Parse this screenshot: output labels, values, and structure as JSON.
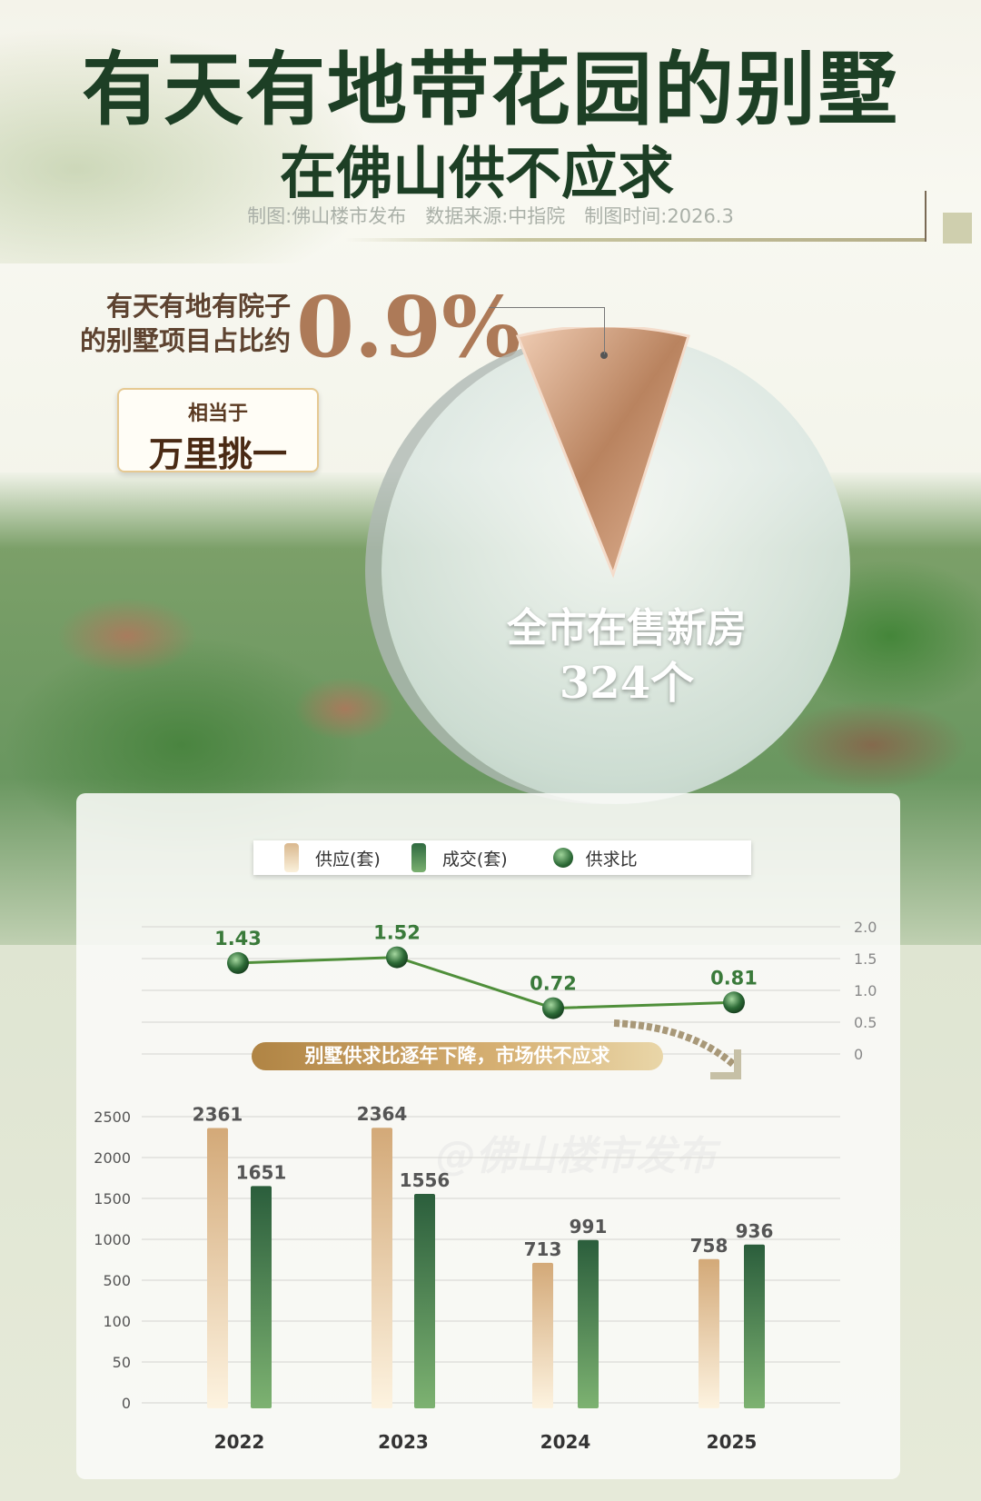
{
  "header": {
    "title_line1": "有天有地带花园的别墅",
    "title_line2": "在佛山供不应求",
    "credits": "制图:佛山楼市发布　数据来源:中指院　制图时间:2026.3"
  },
  "share": {
    "text_line1": "有天有地有院子",
    "text_line2": "的别墅项目占比约",
    "percent": "0.9%",
    "callout_small": "相当于",
    "callout_big": "万里挑一",
    "circle_label": "全市在售新房",
    "circle_value": "324个"
  },
  "colors": {
    "title": "#1d3f25",
    "supply": "#d9b88e",
    "deal": "#2f6a40",
    "ratio": "#3a7a3a",
    "accent": "#ad7a58"
  },
  "banner": "别墅供求比逐年下降，市场供不应求",
  "watermark": "@佛山楼市发布",
  "chart_data": [
    {
      "type": "line",
      "categories": [
        "2022",
        "2023",
        "2024",
        "2025"
      ],
      "series": [
        {
          "name": "供求比",
          "values": [
            1.43,
            1.52,
            0.72,
            0.81
          ]
        }
      ],
      "yticks": [
        "2.0",
        "1.5",
        "1.0",
        "0.5",
        "0"
      ],
      "ylim": [
        0,
        2.0
      ],
      "grid": true,
      "legend": "top"
    },
    {
      "type": "bar",
      "categories": [
        "2022",
        "2023",
        "2024",
        "2025"
      ],
      "series": [
        {
          "name": "供应(套)",
          "values": [
            2361,
            2364,
            713,
            758
          ]
        },
        {
          "name": "成交(套)",
          "values": [
            1651,
            1556,
            991,
            936
          ]
        }
      ],
      "yticks": [
        "2500",
        "2000",
        "1500",
        "1000",
        "500",
        "100",
        "50",
        "0"
      ],
      "ylim": [
        0,
        2500
      ],
      "grid": true,
      "legend": "top"
    }
  ],
  "legend": {
    "supply": "供应(套)",
    "deal": "成交(套)",
    "ratio": "供求比"
  }
}
